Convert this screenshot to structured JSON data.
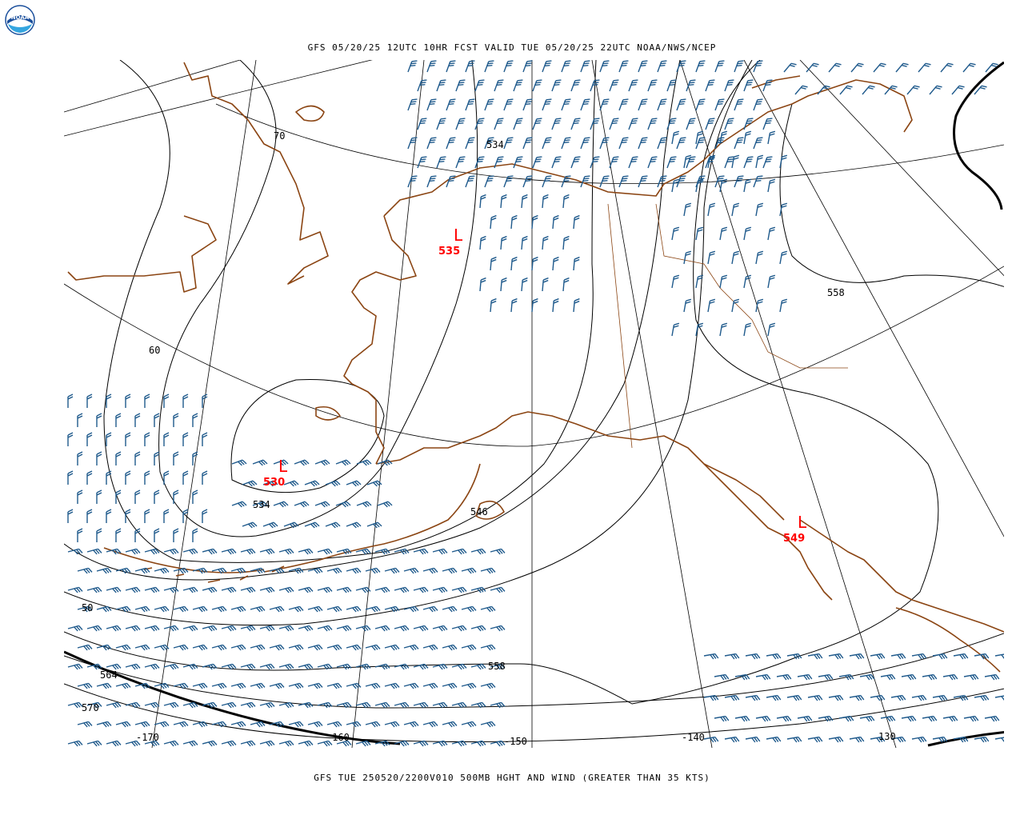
{
  "header": {
    "title": "GFS 05/20/25 12UTC 10HR FCST VALID TUE 05/20/25 22UTC NOAA/NWS/NCEP"
  },
  "footer": {
    "title": "GFS TUE 250520/2200V010 500MB HGHT AND WIND (GREATER THAN 35 KTS)"
  },
  "logo": {
    "text": "NOAA"
  },
  "colors": {
    "coastline": "#8b4513",
    "wind_barb": "#1f5a8c",
    "contour": "#000000",
    "low_marker": "#ff0000"
  },
  "lat_labels": {
    "lat70": "70",
    "lat60": "60",
    "lat50": "50"
  },
  "lon_labels": {
    "lon170": "-170",
    "lon160": "-160",
    "lon150": "-150",
    "lon140": "-140",
    "lon130": "130"
  },
  "contour_labels": {
    "c534_north": "534",
    "c534_west": "534",
    "c546": "546",
    "c558_east": "558",
    "c558_south": "558",
    "c564": "564",
    "c570": "570"
  },
  "lows": [
    {
      "symbol": "L",
      "value": "535"
    },
    {
      "symbol": "L",
      "value": "530"
    },
    {
      "symbol": "L",
      "value": "549"
    }
  ]
}
